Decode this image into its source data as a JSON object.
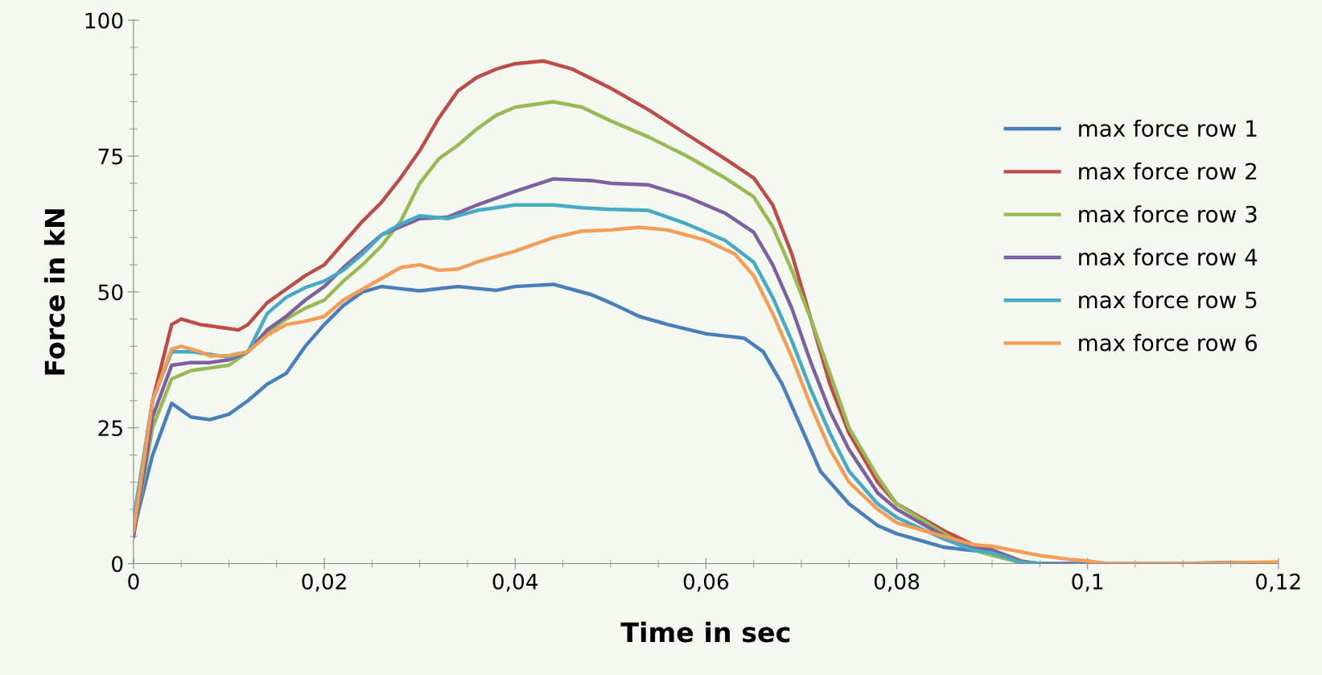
{
  "chart_data": {
    "type": "line",
    "xlabel": "Time in sec",
    "ylabel": "Force in kN",
    "xlim": [
      0,
      0.12
    ],
    "ylim": [
      0,
      100
    ],
    "xticks": [
      0,
      {
        "value": 0.02,
        "label": "0,02"
      },
      {
        "value": 0.04,
        "label": "0,04"
      },
      {
        "value": 0.06,
        "label": "0,06"
      },
      {
        "value": 0.08,
        "label": "0,08"
      },
      {
        "value": 0.1,
        "label": "0,1"
      },
      {
        "value": 0.12,
        "label": "0,12"
      }
    ],
    "yticks": [
      0,
      25,
      50,
      75,
      100
    ],
    "grid": false,
    "legend": "right",
    "marker": "none",
    "line_style": "solid",
    "series": [
      {
        "name": "max force row 1",
        "color": "#4a7ebb",
        "x": [
          0,
          0.002,
          0.004,
          0.006,
          0.008,
          0.01,
          0.012,
          0.014,
          0.016,
          0.018,
          0.02,
          0.022,
          0.024,
          0.026,
          0.03,
          0.034,
          0.038,
          0.04,
          0.044,
          0.048,
          0.05,
          0.053,
          0.056,
          0.06,
          0.064,
          0.066,
          0.068,
          0.07,
          0.072,
          0.075,
          0.078,
          0.08,
          0.085,
          0.09,
          0.093,
          0.095,
          0.1,
          0.105,
          0.11,
          0.115,
          0.12
        ],
        "values": [
          6,
          20,
          29.5,
          27,
          26.5,
          27.5,
          30,
          33,
          35,
          40,
          44,
          47.5,
          50,
          51,
          50.2,
          51,
          50.3,
          51,
          51.4,
          49.5,
          48,
          45.5,
          44,
          42.3,
          41.5,
          39,
          33,
          25,
          17,
          11,
          7,
          5.5,
          3,
          2,
          0.3,
          0,
          0,
          0,
          0,
          0.2,
          0.2
        ]
      },
      {
        "name": "max force row 2",
        "color": "#be4b48",
        "x": [
          0,
          0.002,
          0.004,
          0.005,
          0.007,
          0.009,
          0.011,
          0.012,
          0.014,
          0.016,
          0.018,
          0.02,
          0.022,
          0.024,
          0.026,
          0.028,
          0.03,
          0.032,
          0.034,
          0.036,
          0.038,
          0.04,
          0.043,
          0.046,
          0.05,
          0.054,
          0.058,
          0.062,
          0.065,
          0.067,
          0.069,
          0.071,
          0.073,
          0.075,
          0.078,
          0.08,
          0.085,
          0.088,
          0.09,
          0.093,
          0.095
        ],
        "values": [
          6,
          30,
          44,
          45,
          44,
          43.5,
          43,
          44,
          48,
          50.5,
          53,
          55,
          59,
          63,
          66.5,
          71,
          76,
          82,
          87,
          89.5,
          91,
          92,
          92.5,
          91,
          87.5,
          83.5,
          79,
          74.5,
          71,
          66,
          57,
          45,
          33,
          24,
          15,
          11,
          6,
          3.5,
          2.5,
          0.5,
          0
        ]
      },
      {
        "name": "max force row 3",
        "color": "#98b954",
        "x": [
          0,
          0.002,
          0.004,
          0.006,
          0.008,
          0.01,
          0.012,
          0.014,
          0.016,
          0.018,
          0.02,
          0.022,
          0.024,
          0.026,
          0.028,
          0.03,
          0.032,
          0.034,
          0.036,
          0.038,
          0.04,
          0.044,
          0.047,
          0.05,
          0.054,
          0.058,
          0.062,
          0.065,
          0.067,
          0.069,
          0.071,
          0.073,
          0.075,
          0.078,
          0.08,
          0.085,
          0.088,
          0.09,
          0.093,
          0.095
        ],
        "values": [
          5,
          25,
          34,
          35.5,
          36,
          36.5,
          39,
          42.5,
          45,
          47,
          48.5,
          52,
          55,
          58.5,
          63,
          70,
          74.5,
          77,
          80,
          82.5,
          84,
          85,
          84,
          81.5,
          78.5,
          75,
          71,
          67.5,
          62,
          54,
          45,
          35,
          25,
          16,
          11,
          5.5,
          2.5,
          1.5,
          0.2,
          0
        ]
      },
      {
        "name": "max force row 4",
        "color": "#7d60a0",
        "x": [
          0,
          0.002,
          0.004,
          0.006,
          0.008,
          0.01,
          0.012,
          0.014,
          0.016,
          0.018,
          0.02,
          0.022,
          0.024,
          0.026,
          0.028,
          0.03,
          0.033,
          0.036,
          0.04,
          0.044,
          0.048,
          0.05,
          0.054,
          0.058,
          0.062,
          0.065,
          0.067,
          0.069,
          0.071,
          0.073,
          0.075,
          0.078,
          0.08,
          0.085,
          0.088,
          0.09,
          0.093,
          0.095
        ],
        "values": [
          5,
          27,
          36.5,
          37,
          37,
          37.5,
          39,
          43,
          45.5,
          48.5,
          51,
          54.5,
          57.5,
          60.5,
          62,
          63.5,
          63.8,
          66,
          68.5,
          70.8,
          70.5,
          70,
          69.7,
          67.5,
          64.5,
          61,
          55,
          47,
          37,
          28,
          21,
          13,
          10,
          5,
          3,
          2.5,
          0.3,
          0
        ]
      },
      {
        "name": "max force row 5",
        "color": "#46aac5",
        "x": [
          0,
          0.002,
          0.004,
          0.006,
          0.008,
          0.01,
          0.012,
          0.014,
          0.016,
          0.018,
          0.02,
          0.022,
          0.024,
          0.026,
          0.028,
          0.03,
          0.033,
          0.036,
          0.04,
          0.044,
          0.047,
          0.05,
          0.054,
          0.058,
          0.062,
          0.065,
          0.067,
          0.069,
          0.071,
          0.073,
          0.075,
          0.078,
          0.08,
          0.085,
          0.088,
          0.09,
          0.093,
          0.095
        ],
        "values": [
          8,
          30,
          39,
          39,
          38.5,
          38,
          39,
          46,
          49,
          50.8,
          52,
          54,
          57,
          60.5,
          62.5,
          64,
          63.5,
          65,
          66,
          66,
          65.5,
          65.2,
          65,
          62.5,
          59.5,
          55.5,
          49,
          41,
          32,
          24,
          17,
          11,
          8.5,
          4.5,
          2.5,
          2,
          0.3,
          0
        ]
      },
      {
        "name": "max force row 6",
        "color": "#f59d56",
        "x": [
          0,
          0.002,
          0.004,
          0.005,
          0.007,
          0.008,
          0.01,
          0.012,
          0.014,
          0.016,
          0.018,
          0.02,
          0.022,
          0.024,
          0.026,
          0.028,
          0.03,
          0.032,
          0.034,
          0.036,
          0.04,
          0.044,
          0.047,
          0.05,
          0.053,
          0.056,
          0.06,
          0.063,
          0.065,
          0.067,
          0.069,
          0.071,
          0.073,
          0.075,
          0.078,
          0.08,
          0.085,
          0.088,
          0.09,
          0.092,
          0.095,
          0.098,
          0.1,
          0.102,
          0.11,
          0.12
        ],
        "values": [
          6,
          30,
          39.5,
          40,
          39,
          38.2,
          38.3,
          39,
          42,
          44,
          44.6,
          45.5,
          48.5,
          50.5,
          52.5,
          54.5,
          55,
          54,
          54.2,
          55.5,
          57.5,
          60,
          61.2,
          61.4,
          61.9,
          61.4,
          59.5,
          57,
          53,
          46,
          38,
          29,
          21,
          15,
          10,
          7.5,
          5,
          3.5,
          3.2,
          2.5,
          1.5,
          0.8,
          0.5,
          0,
          0,
          0.3
        ]
      }
    ]
  }
}
